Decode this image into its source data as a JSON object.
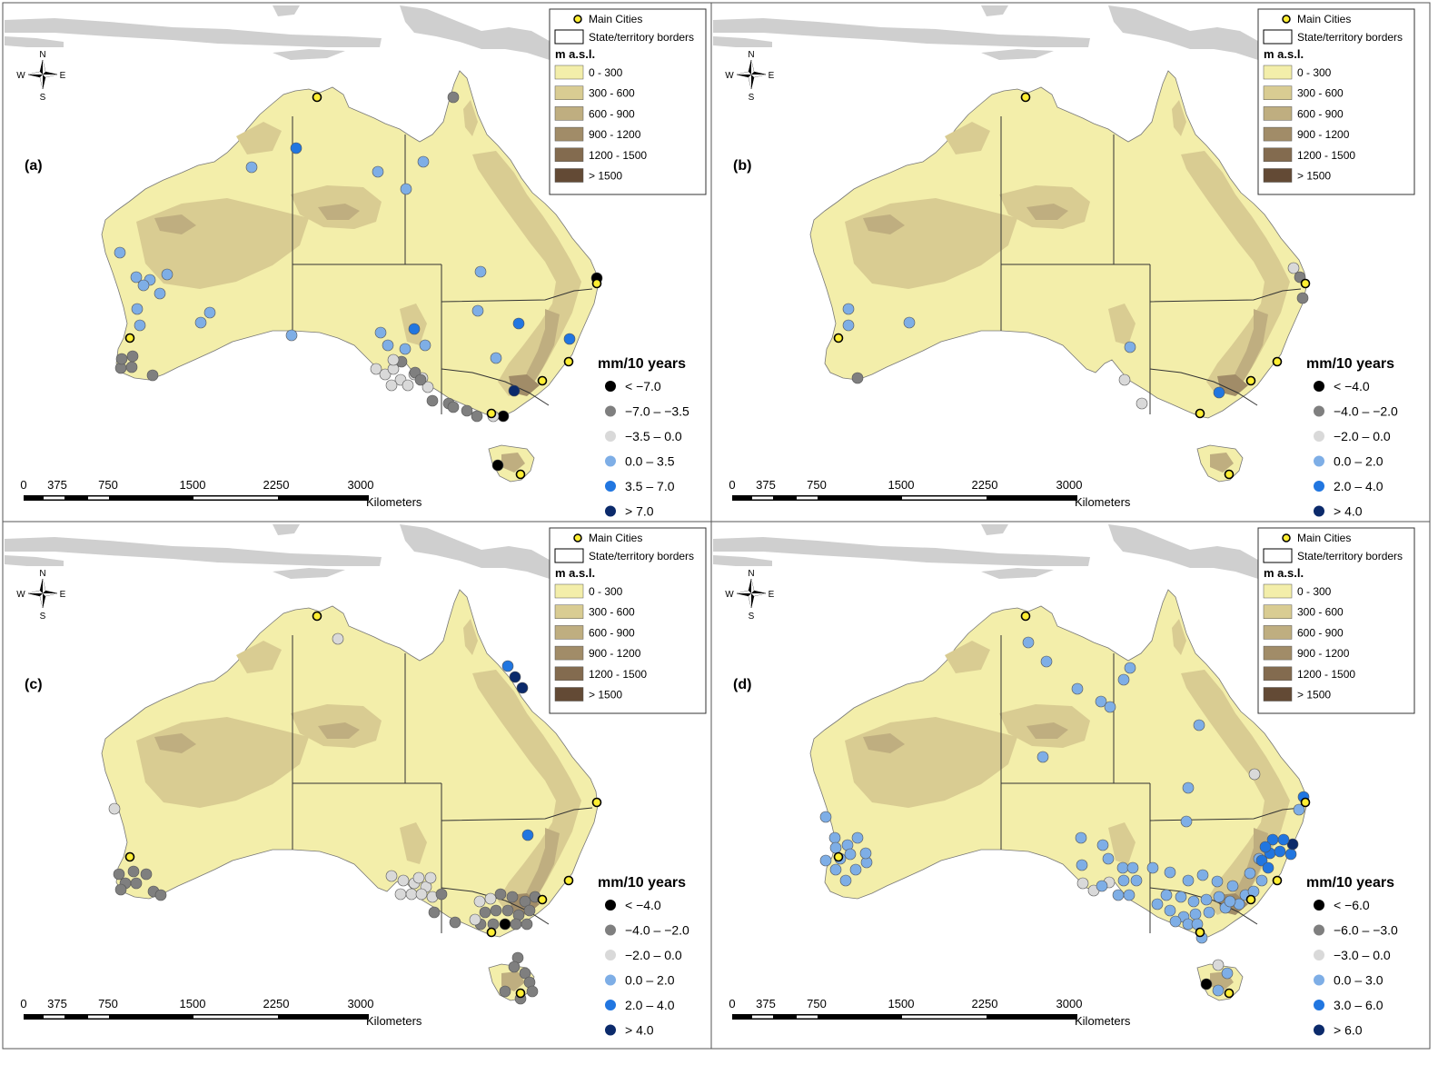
{
  "panels": [
    {
      "label": "(a)",
      "trend_title": "mm/10 years",
      "trend_classes": [
        {
          "label": "< −7.0",
          "color": "#000000"
        },
        {
          "label": "−7.0 – −3.5",
          "color": "#7f7f7f"
        },
        {
          "label": "−3.5 – 0.0",
          "color": "#d9d9d9"
        },
        {
          "label": "0.0 – 3.5",
          "color": "#7eaee6"
        },
        {
          "label": "3.5 – 7.0",
          "color": "#2176e0"
        },
        {
          "label": "> 7.0",
          "color": "#0b2a6b"
        }
      ],
      "stations": [
        [
          326,
          163,
          4
        ],
        [
          277,
          184,
          3
        ],
        [
          416,
          189,
          3
        ],
        [
          466,
          178,
          3
        ],
        [
          447,
          208,
          3
        ],
        [
          499,
          107,
          1
        ],
        [
          132,
          278,
          3
        ],
        [
          150,
          305,
          3
        ],
        [
          165,
          308,
          3
        ],
        [
          184,
          302,
          3
        ],
        [
          158,
          314,
          3
        ],
        [
          176,
          323,
          3
        ],
        [
          151,
          340,
          3
        ],
        [
          154,
          358,
          3
        ],
        [
          231,
          344,
          3
        ],
        [
          221,
          355,
          3
        ],
        [
          321,
          369,
          3
        ],
        [
          657,
          306,
          0
        ],
        [
          529,
          299,
          3
        ],
        [
          526,
          342,
          3
        ],
        [
          571,
          356,
          4
        ],
        [
          627,
          373,
          4
        ],
        [
          456,
          362,
          4
        ],
        [
          419,
          366,
          3
        ],
        [
          427,
          380,
          3
        ],
        [
          446,
          384,
          3
        ],
        [
          468,
          380,
          3
        ],
        [
          546,
          394,
          3
        ],
        [
          133,
          405,
          1
        ],
        [
          145,
          404,
          1
        ],
        [
          134,
          395,
          1
        ],
        [
          146,
          392,
          1
        ],
        [
          168,
          413,
          1
        ],
        [
          414,
          406,
          2
        ],
        [
          424,
          412,
          2
        ],
        [
          433,
          406,
          2
        ],
        [
          441,
          418,
          2
        ],
        [
          449,
          424,
          2
        ],
        [
          456,
          412,
          2
        ],
        [
          465,
          416,
          2
        ],
        [
          471,
          426,
          2
        ],
        [
          431,
          424,
          2
        ],
        [
          442,
          398,
          1
        ],
        [
          457,
          410,
          1
        ],
        [
          463,
          418,
          1
        ],
        [
          476,
          441,
          1
        ],
        [
          494,
          444,
          1
        ],
        [
          433,
          396,
          2
        ],
        [
          566,
          430,
          5
        ],
        [
          554,
          458,
          0
        ],
        [
          548,
          512,
          0
        ],
        [
          499,
          448,
          1
        ],
        [
          514,
          452,
          1
        ],
        [
          525,
          458,
          1
        ],
        [
          543,
          458,
          2
        ]
      ]
    },
    {
      "label": "(b)",
      "trend_title": "mm/10 years",
      "trend_classes": [
        {
          "label": "< −4.0",
          "color": "#000000"
        },
        {
          "label": "−4.0 – −2.0",
          "color": "#7f7f7f"
        },
        {
          "label": "−2.0 – 0.0",
          "color": "#d9d9d9"
        },
        {
          "label": "0.0 – 2.0",
          "color": "#7eaee6"
        },
        {
          "label": "2.0 – 4.0",
          "color": "#2176e0"
        },
        {
          "label": "> 4.0",
          "color": "#0b2a6b"
        }
      ],
      "stations": [
        [
          644,
          295,
          2
        ],
        [
          651,
          305,
          1
        ],
        [
          654,
          328,
          1
        ],
        [
          458,
          418,
          2
        ],
        [
          477,
          444,
          2
        ],
        [
          464,
          382,
          3
        ],
        [
          562,
          432,
          4
        ],
        [
          221,
          355,
          3
        ],
        [
          154,
          340,
          3
        ],
        [
          154,
          358,
          3
        ],
        [
          164,
          416,
          1
        ]
      ]
    },
    {
      "label": "(c)",
      "trend_title": "mm/10 years",
      "trend_classes": [
        {
          "label": "< −4.0",
          "color": "#000000"
        },
        {
          "label": "−4.0 – −2.0",
          "color": "#7f7f7f"
        },
        {
          "label": "−2.0 – 0.0",
          "color": "#d9d9d9"
        },
        {
          "label": "0.0 – 2.0",
          "color": "#7eaee6"
        },
        {
          "label": "2.0 – 4.0",
          "color": "#2176e0"
        },
        {
          "label": "> 4.0",
          "color": "#0b2a6b"
        }
      ],
      "stations": [
        [
          372,
          132,
          2
        ],
        [
          559,
          162,
          4
        ],
        [
          567,
          174,
          5
        ],
        [
          575,
          186,
          5
        ],
        [
          126,
          319,
          2
        ],
        [
          581,
          348,
          4
        ],
        [
          131,
          391,
          1
        ],
        [
          147,
          388,
          1
        ],
        [
          138,
          401,
          1
        ],
        [
          133,
          408,
          1
        ],
        [
          150,
          401,
          1
        ],
        [
          161,
          391,
          1
        ],
        [
          169,
          410,
          1
        ],
        [
          177,
          414,
          1
        ],
        [
          431,
          393,
          2
        ],
        [
          444,
          398,
          2
        ],
        [
          456,
          401,
          2
        ],
        [
          469,
          405,
          2
        ],
        [
          441,
          413,
          2
        ],
        [
          453,
          413,
          2
        ],
        [
          464,
          413,
          2
        ],
        [
          476,
          416,
          2
        ],
        [
          461,
          395,
          2
        ],
        [
          474,
          395,
          2
        ],
        [
          486,
          413,
          1
        ],
        [
          501,
          444,
          1
        ],
        [
          478,
          433,
          1
        ],
        [
          528,
          421,
          2
        ],
        [
          540,
          418,
          2
        ],
        [
          551,
          413,
          1
        ],
        [
          564,
          416,
          1
        ],
        [
          578,
          421,
          1
        ],
        [
          589,
          416,
          1
        ],
        [
          534,
          433,
          1
        ],
        [
          546,
          431,
          1
        ],
        [
          559,
          431,
          1
        ],
        [
          571,
          436,
          1
        ],
        [
          583,
          431,
          1
        ],
        [
          529,
          446,
          1
        ],
        [
          543,
          446,
          1
        ],
        [
          556,
          446,
          0
        ],
        [
          568,
          446,
          1
        ],
        [
          580,
          446,
          1
        ],
        [
          523,
          441,
          2
        ],
        [
          570,
          483,
          1
        ],
        [
          566,
          493,
          1
        ],
        [
          578,
          500,
          1
        ],
        [
          583,
          510,
          1
        ],
        [
          556,
          520,
          1
        ],
        [
          573,
          528,
          1
        ],
        [
          586,
          520,
          1
        ]
      ]
    },
    {
      "label": "(d)",
      "trend_title": "mm/10 years",
      "trend_classes": [
        {
          "label": "< −6.0",
          "color": "#000000"
        },
        {
          "label": "−6.0 – −3.0",
          "color": "#7f7f7f"
        },
        {
          "label": "−3.0 – 0.0",
          "color": "#d9d9d9"
        },
        {
          "label": "0.0 – 3.0",
          "color": "#7eaee6"
        },
        {
          "label": "3.0 – 6.0",
          "color": "#2176e0"
        },
        {
          "label": "> 6.0",
          "color": "#0b2a6b"
        }
      ],
      "stations": [
        [
          352,
          136,
          3
        ],
        [
          372,
          157,
          3
        ],
        [
          464,
          164,
          3
        ],
        [
          457,
          177,
          3
        ],
        [
          406,
          187,
          3
        ],
        [
          432,
          201,
          3
        ],
        [
          442,
          207,
          3
        ],
        [
          540,
          227,
          3
        ],
        [
          368,
          262,
          3
        ],
        [
          601,
          281,
          2
        ],
        [
          528,
          296,
          3
        ],
        [
          655,
          306,
          4
        ],
        [
          650,
          320,
          3
        ],
        [
          526,
          333,
          3
        ],
        [
          129,
          328,
          3
        ],
        [
          139,
          351,
          3
        ],
        [
          153,
          359,
          3
        ],
        [
          145,
          374,
          3
        ],
        [
          129,
          376,
          3
        ],
        [
          140,
          386,
          3
        ],
        [
          151,
          398,
          3
        ],
        [
          162,
          386,
          3
        ],
        [
          174,
          378,
          3
        ],
        [
          173,
          368,
          3
        ],
        [
          156,
          369,
          3
        ],
        [
          164,
          351,
          3
        ],
        [
          140,
          362,
          3
        ],
        [
          410,
          351,
          3
        ],
        [
          434,
          359,
          3
        ],
        [
          411,
          381,
          3
        ],
        [
          440,
          374,
          3
        ],
        [
          456,
          384,
          3
        ],
        [
          467,
          384,
          3
        ],
        [
          471,
          398,
          3
        ],
        [
          441,
          400,
          2
        ],
        [
          424,
          409,
          2
        ],
        [
          412,
          401,
          2
        ],
        [
          433,
          404,
          3
        ],
        [
          451,
          414,
          3
        ],
        [
          463,
          414,
          3
        ],
        [
          457,
          398,
          3
        ],
        [
          489,
          384,
          3
        ],
        [
          508,
          389,
          3
        ],
        [
          528,
          398,
          3
        ],
        [
          544,
          392,
          3
        ],
        [
          560,
          399,
          3
        ],
        [
          577,
          404,
          3
        ],
        [
          591,
          414,
          3
        ],
        [
          584,
          424,
          3
        ],
        [
          569,
          428,
          3
        ],
        [
          551,
          433,
          3
        ],
        [
          536,
          435,
          3
        ],
        [
          523,
          438,
          3
        ],
        [
          508,
          431,
          3
        ],
        [
          494,
          424,
          3
        ],
        [
          504,
          414,
          3
        ],
        [
          520,
          416,
          3
        ],
        [
          534,
          421,
          3
        ],
        [
          548,
          419,
          3
        ],
        [
          562,
          416,
          3
        ],
        [
          574,
          421,
          3
        ],
        [
          596,
          390,
          3
        ],
        [
          606,
          374,
          3
        ],
        [
          618,
          368,
          4
        ],
        [
          629,
          366,
          4
        ],
        [
          641,
          369,
          4
        ],
        [
          643,
          358,
          5
        ],
        [
          633,
          353,
          4
        ],
        [
          621,
          353,
          4
        ],
        [
          613,
          361,
          4
        ],
        [
          609,
          376,
          4
        ],
        [
          616,
          384,
          4
        ],
        [
          609,
          398,
          3
        ],
        [
          600,
          410,
          3
        ],
        [
          543,
          461,
          3
        ],
        [
          561,
          491,
          2
        ],
        [
          548,
          512,
          0
        ],
        [
          561,
          519,
          3
        ],
        [
          571,
          500,
          3
        ],
        [
          528,
          446,
          3
        ],
        [
          538,
          446,
          3
        ],
        [
          514,
          443,
          3
        ]
      ]
    }
  ],
  "cities": [
    [
      349,
      107
    ],
    [
      657,
      312
    ],
    [
      143,
      372
    ],
    [
      626,
      398
    ],
    [
      597,
      419
    ],
    [
      541,
      455
    ],
    [
      573,
      522
    ]
  ],
  "legend": {
    "main_cities": "Main Cities",
    "borders": "State/territory borders",
    "elev_title": "m a.s.l.",
    "elev_classes": [
      {
        "label": "0 - 300",
        "color": "#f3eeaa"
      },
      {
        "label": "300 - 600",
        "color": "#d9cc92"
      },
      {
        "label": "600 - 900",
        "color": "#bfae80"
      },
      {
        "label": "900 - 1200",
        "color": "#a18c68"
      },
      {
        "label": "1200 - 1500",
        "color": "#836b4f"
      },
      {
        "label": "> 1500",
        "color": "#634a35"
      }
    ]
  },
  "scale_bar": {
    "ticks": [
      "0",
      "375",
      "750",
      "1500",
      "2250",
      "3000"
    ],
    "unit": "Kilometers"
  },
  "compass": {
    "n": "N",
    "s": "S",
    "e": "E",
    "w": "W"
  },
  "colors": {
    "land": "#f3eeaa",
    "elev1": "#d9cc92",
    "elev2": "#bfae80",
    "elev3": "#a18c68",
    "neighbor": "#cfcfcf",
    "city": "#ffee33"
  }
}
